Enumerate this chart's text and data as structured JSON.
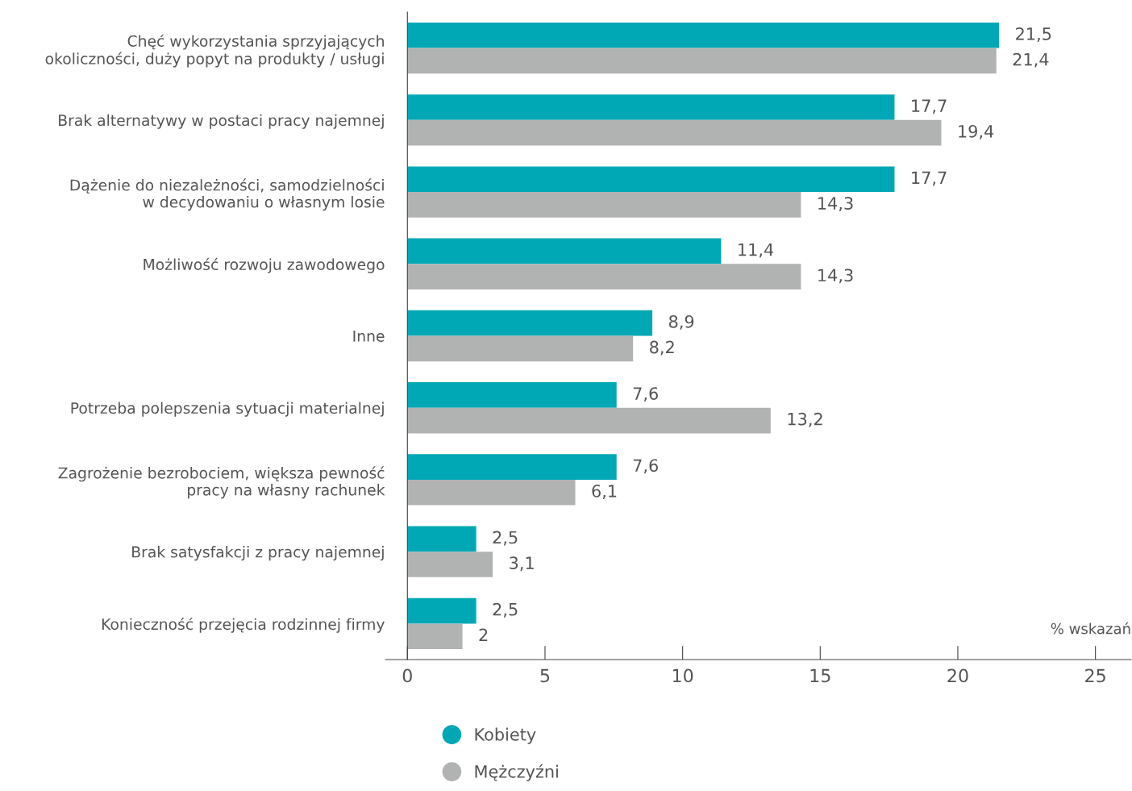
{
  "chart_data": {
    "type": "bar",
    "orientation": "horizontal",
    "categories": [
      "Chęć wykorzystania sprzyjających\nokoliczności, duży popyt na produkty / usługi",
      "Brak alternatywy w postaci pracy najemnej",
      "Dążenie do niezależności, samodzielności\nw decydowaniu o własnym losie",
      "Możliwość rozwoju zawodowego",
      "Inne",
      "Potrzeba polepszenia sytuacji materialnej",
      "Zagrożenie bezrobociem, większa pewność\npracy na własny rachunek",
      "Brak satysfakcji z pracy najemnej",
      "Konieczność przejęcia rodzinnej firmy"
    ],
    "series": [
      {
        "name": "Kobiety",
        "color": "#00a7b5",
        "values": [
          21.5,
          17.7,
          17.7,
          11.4,
          8.9,
          7.6,
          7.6,
          2.5,
          2.5
        ],
        "value_labels": [
          "21,5",
          "17,7",
          "17,7",
          "11,4",
          "8,9",
          "7,6",
          "7,6",
          "2,5",
          "2,5"
        ]
      },
      {
        "name": "Mężczyźni",
        "color": "#b1b3b3",
        "values": [
          21.4,
          19.4,
          14.3,
          14.3,
          8.2,
          13.2,
          6.1,
          3.1,
          2
        ],
        "value_labels": [
          "21,4",
          "19,4",
          "14,3",
          "14,3",
          "8,2",
          "13,2",
          "6,1",
          "3,1",
          "2"
        ]
      }
    ],
    "xlim": [
      -0.8,
      26.3
    ],
    "xticks": [
      0,
      5,
      10,
      15,
      20,
      25
    ],
    "annotations": [
      "% wskazań"
    ],
    "grid": false,
    "legend": "bottom left"
  }
}
